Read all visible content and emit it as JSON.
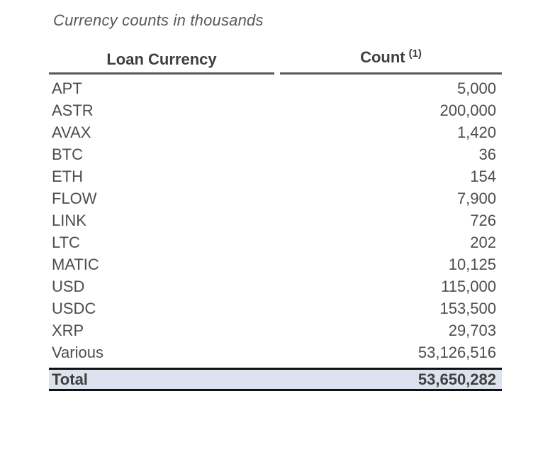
{
  "page": {
    "title": "Currency counts in thousands"
  },
  "table": {
    "columns": [
      {
        "label": "Loan Currency"
      },
      {
        "label": "Count",
        "footnote_marker": "(1)"
      }
    ],
    "rows": [
      {
        "currency": "APT",
        "count": "5,000"
      },
      {
        "currency": "ASTR",
        "count": "200,000"
      },
      {
        "currency": "AVAX",
        "count": "1,420"
      },
      {
        "currency": "BTC",
        "count": "36"
      },
      {
        "currency": "ETH",
        "count": "154"
      },
      {
        "currency": "FLOW",
        "count": "7,900"
      },
      {
        "currency": "LINK",
        "count": "726"
      },
      {
        "currency": "LTC",
        "count": "202"
      },
      {
        "currency": "MATIC",
        "count": "10,125"
      },
      {
        "currency": "USD",
        "count": "115,000"
      },
      {
        "currency": "USDC",
        "count": "153,500"
      },
      {
        "currency": "XRP",
        "count": "29,703"
      },
      {
        "currency": "Various",
        "count": "53,126,516"
      }
    ],
    "total": {
      "label": "Total",
      "value": "53,650,282"
    }
  },
  "colors": {
    "text": "#4d4d4d",
    "header_text": "#3f3f3f",
    "rule": "#595959",
    "total_bg": "#dce3ee",
    "total_border": "#111111",
    "page_bg": "#ffffff"
  }
}
